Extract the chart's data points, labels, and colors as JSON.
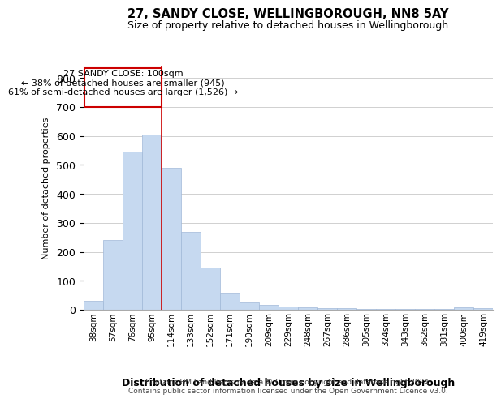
{
  "title1": "27, SANDY CLOSE, WELLINGBOROUGH, NN8 5AY",
  "title2": "Size of property relative to detached houses in Wellingborough",
  "xlabel": "Distribution of detached houses by size in Wellingborough",
  "ylabel": "Number of detached properties",
  "categories": [
    "38sqm",
    "57sqm",
    "76sqm",
    "95sqm",
    "114sqm",
    "133sqm",
    "152sqm",
    "171sqm",
    "190sqm",
    "209sqm",
    "229sqm",
    "248sqm",
    "267sqm",
    "286sqm",
    "305sqm",
    "324sqm",
    "343sqm",
    "362sqm",
    "381sqm",
    "400sqm",
    "419sqm"
  ],
  "values": [
    30,
    240,
    545,
    605,
    490,
    270,
    145,
    60,
    25,
    18,
    10,
    8,
    6,
    5,
    4,
    4,
    3,
    3,
    2,
    8,
    7
  ],
  "bar_color": "#c6d9f0",
  "bar_edgecolor": "#a0b8d8",
  "grid_color": "#d0d0d0",
  "annotation_box_color": "#cc0000",
  "annotation_text_line1": "27 SANDY CLOSE: 100sqm",
  "annotation_text_line2": "← 38% of detached houses are smaller (945)",
  "annotation_text_line3": "61% of semi-detached houses are larger (1,526) →",
  "red_line_x": 3.5,
  "ylim": [
    0,
    840
  ],
  "yticks": [
    0,
    100,
    200,
    300,
    400,
    500,
    600,
    700,
    800
  ],
  "footnote1": "Contains HM Land Registry data © Crown copyright and database right 2024.",
  "footnote2": "Contains public sector information licensed under the Open Government Licence v3.0.",
  "bg_color": "#ffffff",
  "fig_width": 6.0,
  "fig_height": 5.0
}
